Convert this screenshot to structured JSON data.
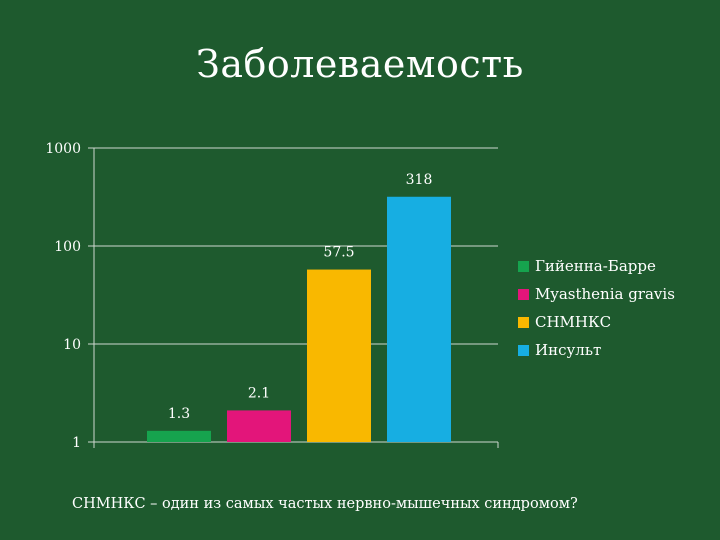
{
  "chart_data": {
    "type": "bar",
    "title": "Заболеваемость",
    "scale": "log",
    "ylim": [
      1,
      1000
    ],
    "yticks": [
      1,
      10,
      100,
      1000
    ],
    "ytick_labels": [
      "1",
      "10",
      "100",
      "1000"
    ],
    "grid": true,
    "legend_position": "right",
    "series": [
      {
        "name": "Гийенна-Барре",
        "value": 1.3,
        "label": "1.3",
        "color": "#16a34e"
      },
      {
        "name": "Myasthenia gravis",
        "value": 2.1,
        "label": "2.1",
        "color": "#e3157a"
      },
      {
        "name": "СНМНКС",
        "value": 57.5,
        "label": "57.5",
        "color": "#f9b800"
      },
      {
        "name": "Инсульт",
        "value": 318,
        "label": "318",
        "color": "#17aee2"
      }
    ]
  },
  "footnote": "СНМНКС – один из самых частых нервно-мышечных синдромом?"
}
